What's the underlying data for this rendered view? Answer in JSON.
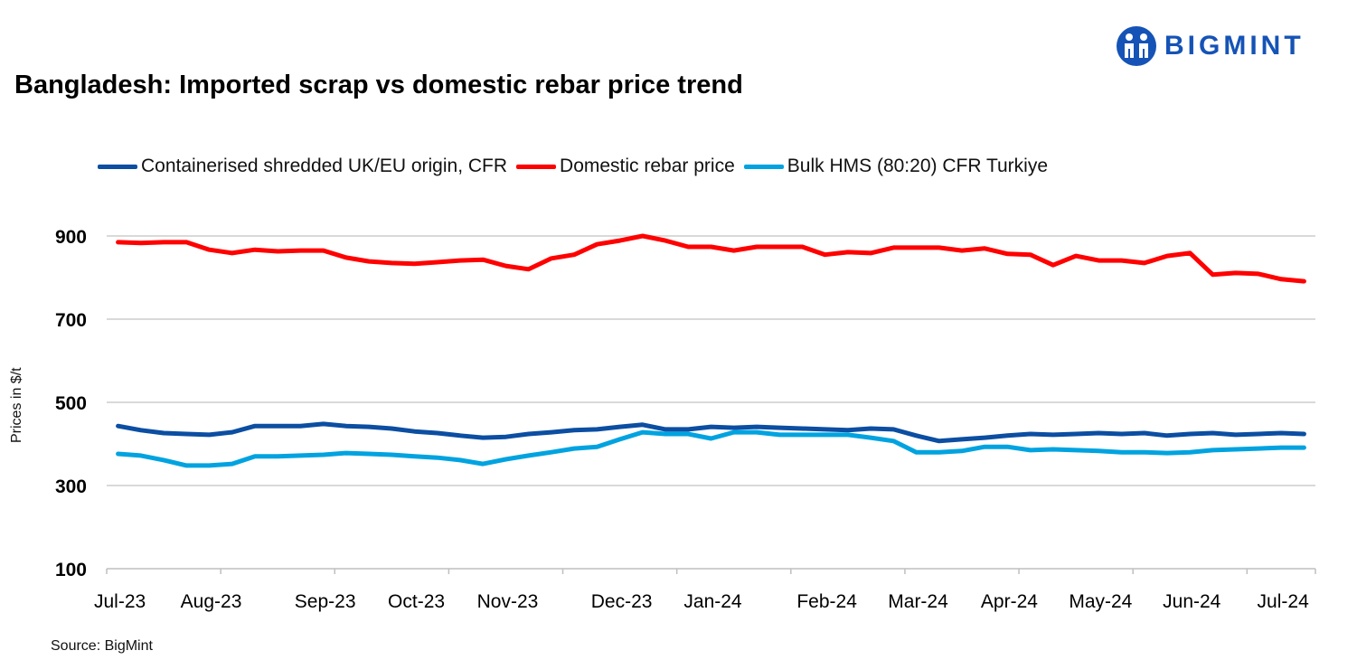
{
  "title": "Bangladesh: Imported scrap vs domestic rebar price trend",
  "logo_text": "BIGMINT",
  "source": "Source: BigMint",
  "chart_data": {
    "type": "line",
    "title": "Bangladesh: Imported scrap vs domestic rebar price trend",
    "ylabel": "Prices in $/t",
    "xlabel": "",
    "ylim": [
      100,
      1000
    ],
    "yticks": [
      100,
      300,
      500,
      700,
      900
    ],
    "grid": true,
    "legend_position": "top",
    "x_tick_labels": [
      {
        "label": "Jul-23",
        "index": 0
      },
      {
        "label": "Aug-23",
        "index": 4
      },
      {
        "label": "Sep-23",
        "index": 9
      },
      {
        "label": "Oct-23",
        "index": 13
      },
      {
        "label": "Nov-23",
        "index": 17
      },
      {
        "label": "Dec-23",
        "index": 22
      },
      {
        "label": "Jan-24",
        "index": 26
      },
      {
        "label": "Feb-24",
        "index": 31
      },
      {
        "label": "Mar-24",
        "index": 35
      },
      {
        "label": "Apr-24",
        "index": 39
      },
      {
        "label": "May-24",
        "index": 43
      },
      {
        "label": "Jun-24",
        "index": 47
      },
      {
        "label": "Jul-24",
        "index": 51
      }
    ],
    "series": [
      {
        "name": "Containerised shredded UK/EU origin, CFR",
        "color": "#0b4ea2",
        "values": [
          443,
          433,
          426,
          424,
          422,
          428,
          443,
          443,
          443,
          448,
          443,
          441,
          437,
          430,
          426,
          420,
          415,
          417,
          424,
          428,
          433,
          435,
          441,
          446,
          435,
          435,
          441,
          439,
          441,
          439,
          437,
          435,
          433,
          437,
          435,
          420,
          407,
          411,
          415,
          420,
          424,
          422,
          424,
          426,
          424,
          426,
          420,
          424,
          426,
          422,
          424,
          426,
          424
        ]
      },
      {
        "name": "Domestic rebar price",
        "color": "#ff0000",
        "values": [
          885,
          883,
          885,
          885,
          867,
          859,
          867,
          863,
          865,
          865,
          848,
          839,
          835,
          833,
          837,
          841,
          843,
          828,
          820,
          846,
          855,
          880,
          889,
          900,
          889,
          874,
          874,
          865,
          874,
          874,
          874,
          855,
          861,
          859,
          872,
          872,
          872,
          865,
          870,
          857,
          855,
          830,
          852,
          841,
          841,
          835,
          852,
          859,
          807,
          811,
          809,
          796,
          791
        ]
      },
      {
        "name": "Bulk HMS (80:20) CFR Turkiye",
        "color": "#00a3e0",
        "values": [
          376,
          372,
          361,
          348,
          348,
          352,
          370,
          370,
          372,
          374,
          378,
          376,
          374,
          370,
          367,
          361,
          352,
          363,
          372,
          380,
          389,
          393,
          411,
          428,
          424,
          424,
          413,
          428,
          428,
          422,
          422,
          422,
          422,
          415,
          407,
          380,
          380,
          383,
          393,
          393,
          385,
          387,
          385,
          383,
          380,
          380,
          378,
          380,
          385,
          387,
          389,
          391,
          391
        ]
      }
    ]
  }
}
